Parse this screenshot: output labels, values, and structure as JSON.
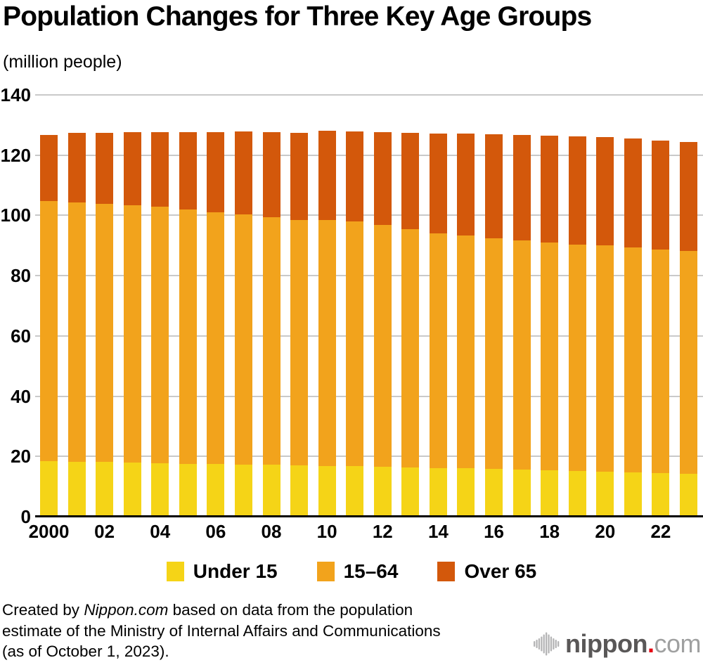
{
  "page": {
    "background": "#FFFFFF"
  },
  "header": {
    "title": "Population Changes for Three Key Age Groups",
    "unit_label": "(million people)"
  },
  "chart_data": {
    "type": "bar",
    "stacked": true,
    "title": "Population Changes for Three Key Age Groups",
    "unit_label": "(million people)",
    "years": [
      2000,
      2001,
      2002,
      2003,
      2004,
      2005,
      2006,
      2007,
      2008,
      2009,
      2010,
      2011,
      2012,
      2013,
      2014,
      2015,
      2016,
      2017,
      2018,
      2019,
      2020,
      2021,
      2022,
      2023
    ],
    "x_ticks": [
      {
        "index": 0,
        "label": "2000"
      },
      {
        "index": 2,
        "label": "02"
      },
      {
        "index": 4,
        "label": "04"
      },
      {
        "index": 6,
        "label": "06"
      },
      {
        "index": 8,
        "label": "08"
      },
      {
        "index": 10,
        "label": "10"
      },
      {
        "index": 12,
        "label": "12"
      },
      {
        "index": 14,
        "label": "14"
      },
      {
        "index": 16,
        "label": "16"
      },
      {
        "index": 18,
        "label": "18"
      },
      {
        "index": 20,
        "label": "20"
      },
      {
        "index": 22,
        "label": "22"
      }
    ],
    "series": [
      {
        "name": "Under 15",
        "color": "#F5D417",
        "values": [
          18.5,
          18.3,
          18.1,
          17.9,
          17.7,
          17.5,
          17.4,
          17.3,
          17.2,
          17.0,
          16.8,
          16.7,
          16.6,
          16.4,
          16.2,
          16.0,
          15.8,
          15.6,
          15.4,
          15.2,
          15.0,
          14.8,
          14.5,
          14.2
        ]
      },
      {
        "name": "15–64",
        "color": "#F2A31C",
        "values": [
          86.2,
          86.1,
          85.7,
          85.4,
          85.1,
          84.4,
          83.7,
          83.0,
          82.3,
          81.5,
          81.7,
          81.3,
          80.2,
          79.0,
          77.9,
          77.3,
          76.6,
          76.0,
          75.5,
          75.1,
          75.1,
          74.5,
          74.2,
          74.0
        ]
      },
      {
        "name": "Over 65",
        "color": "#D3580B",
        "values": [
          22.0,
          22.9,
          23.6,
          24.3,
          24.9,
          25.8,
          26.6,
          27.5,
          28.2,
          29.0,
          29.5,
          29.8,
          30.8,
          31.9,
          33.0,
          33.9,
          34.6,
          35.2,
          35.6,
          35.9,
          36.0,
          36.2,
          36.2,
          36.2
        ]
      }
    ],
    "ylim": [
      0,
      140
    ],
    "y_ticks": [
      0,
      20,
      40,
      60,
      80,
      100,
      120,
      140
    ],
    "grid": true,
    "grid_color": "#C9C9C9",
    "axis_color": "#000000",
    "legend_position": "bottom"
  },
  "footer": {
    "line1_prefix": "Created by ",
    "line1_source": "Nippon.com",
    "line1_rest": " based on data from the population",
    "line2": "estimate of the Ministry of Internal Affairs and Communications",
    "line3": "(as of October 1, 2023)."
  },
  "logo": {
    "icon": "audio-wave-icon",
    "name": "nippon",
    "dot": ".",
    "tld": "com",
    "name_color": "#595757",
    "dot_color": "#E60012",
    "tld_color": "#9FA0A0",
    "icon_color": "#B5B5B6"
  }
}
